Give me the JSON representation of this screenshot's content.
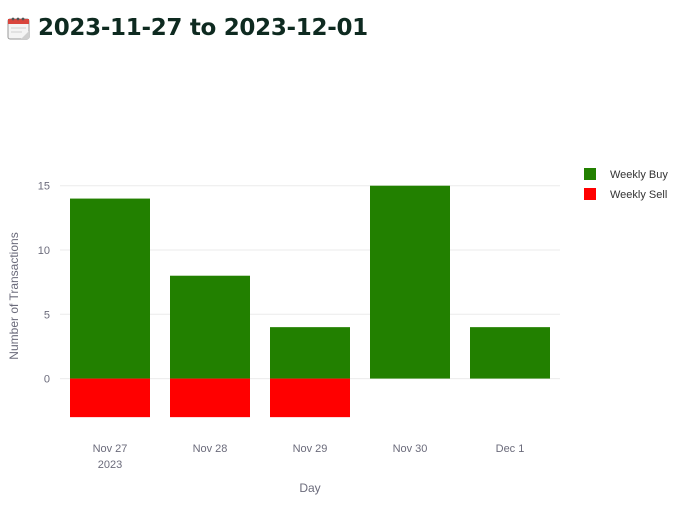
{
  "header": {
    "title": "2023-11-27 to 2023-12-01",
    "icon": "calendar-icon"
  },
  "chart_data": {
    "type": "bar",
    "barmode": "relative",
    "categories": [
      "Nov 27",
      "Nov 28",
      "Nov 29",
      "Nov 30",
      "Dec 1"
    ],
    "category_year_label": "2023",
    "series": [
      {
        "name": "Weekly Buy",
        "color": "#228000",
        "values": [
          14,
          8,
          4,
          15,
          4
        ]
      },
      {
        "name": "Weekly Sell",
        "color": "#ff0000",
        "values": [
          -3,
          -3,
          -3,
          0,
          0
        ]
      }
    ],
    "xlabel": "Day",
    "ylabel": "Number of Transactions",
    "ylim": [
      -4,
      17
    ],
    "yticks": [
      0,
      5,
      10,
      15
    ],
    "grid": true,
    "legend_position": "top-right"
  },
  "colors": {
    "gridline": "#ebebeb",
    "axis_text": "#6b6b7b",
    "title_text": "#0e2a20"
  }
}
